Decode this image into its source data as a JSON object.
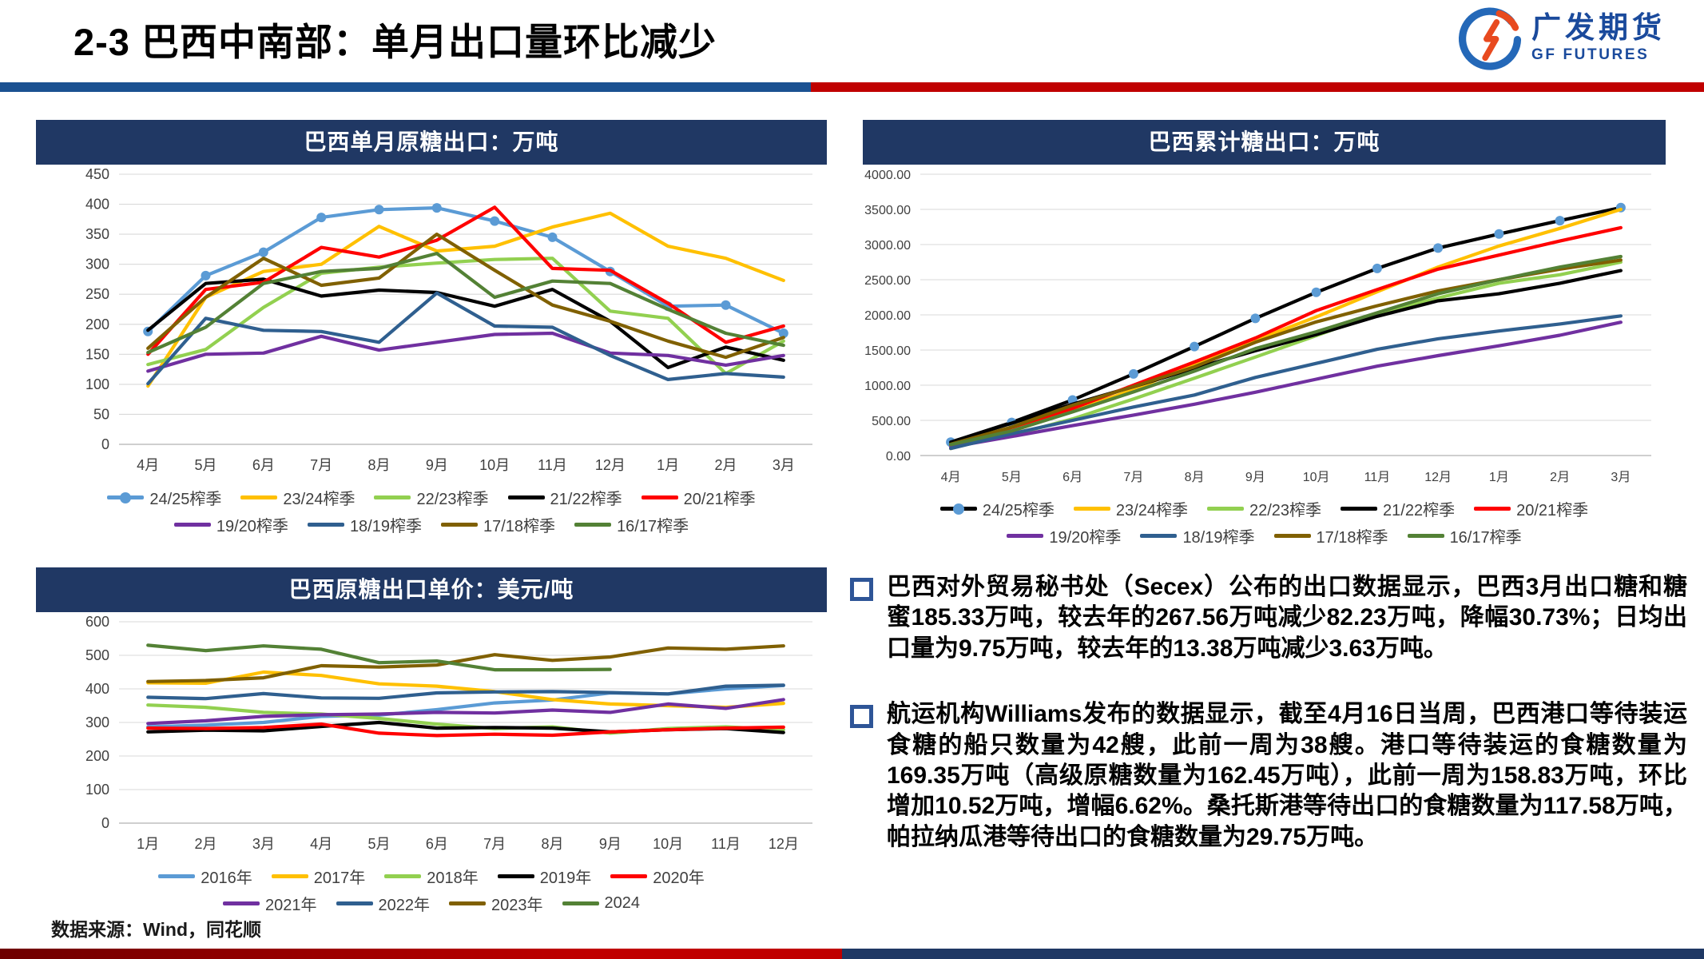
{
  "slide": {
    "title": "2-3 巴西中南部：单月出口量环比减少",
    "logo_cn": "广发期货",
    "logo_en": "GF FUTURES",
    "source": "数据来源：Wind，同花顺"
  },
  "colors": {
    "accent_red": "#C00000",
    "accent_blue": "#1B5191",
    "panel_header_navy": "#203864",
    "bottom_navy": "#1F3864",
    "logo_blue": "#1A4A9C",
    "bullet_square_blue": "#2E5597"
  },
  "bullets": [
    {
      "text": "巴西对外贸易秘书处（Secex）公布的出口数据显示，巴西3月出口糖和糖蜜185.33万吨，较去年的267.56万吨减少82.23万吨，降幅30.73%；日均出口量为9.75万吨，较去年的13.38万吨减少3.63万吨。"
    },
    {
      "text": "航运机构Williams发布的数据显示，截至4月16日当周，巴西港口等待装运食糖的船只数量为42艘，此前一周为38艘。港口等待装运的食糖数量为169.35万吨（高级原糖数量为162.45万吨），此前一周为158.83万吨，环比增加10.52万吨，增幅6.62%。桑托斯港等待出口的食糖数量为117.58万吨，帕拉纳瓜港等待出口的食糖数量为29.75万吨。"
    }
  ],
  "chart_data": [
    {
      "id": "brazil-monthly-raw-sugar-exports",
      "type": "line",
      "title": "巴西单月原糖出口：万吨",
      "categories": [
        "4月",
        "5月",
        "6月",
        "7月",
        "8月",
        "9月",
        "10月",
        "11月",
        "12月",
        "1月",
        "2月",
        "3月"
      ],
      "ylim": [
        0,
        450
      ],
      "ytick": 50,
      "y_format": "int",
      "grid": true,
      "legend_position": "bottom",
      "legend_rows": [
        5,
        4
      ],
      "series": [
        {
          "name": "24/25榨季",
          "color": "#5B9BD5",
          "marker": true,
          "values": [
            188,
            281,
            320,
            378,
            391,
            394,
            372,
            345,
            288,
            230,
            232,
            185
          ]
        },
        {
          "name": "23/24榨季",
          "color": "#FFC000",
          "values": [
            97,
            245,
            288,
            300,
            363,
            322,
            330,
            362,
            385,
            330,
            310,
            273
          ]
        },
        {
          "name": "22/23榨季",
          "color": "#92D050",
          "values": [
            133,
            158,
            228,
            285,
            295,
            302,
            308,
            310,
            222,
            210,
            118,
            172
          ]
        },
        {
          "name": "21/22榨季",
          "color": "#000000",
          "values": [
            190,
            268,
            275,
            247,
            257,
            253,
            230,
            258,
            205,
            128,
            162,
            140
          ]
        },
        {
          "name": "20/21榨季",
          "color": "#FF0000",
          "values": [
            150,
            258,
            270,
            328,
            312,
            340,
            395,
            293,
            290,
            235,
            170,
            197
          ]
        },
        {
          "name": "19/20榨季",
          "color": "#7030A0",
          "values": [
            122,
            150,
            152,
            180,
            157,
            170,
            183,
            185,
            152,
            148,
            132,
            148
          ]
        },
        {
          "name": "18/19榨季",
          "color": "#2F5F8F",
          "values": [
            101,
            210,
            190,
            188,
            170,
            252,
            197,
            195,
            148,
            108,
            118,
            112
          ]
        },
        {
          "name": "17/18榨季",
          "color": "#806000",
          "values": [
            160,
            245,
            310,
            265,
            277,
            350,
            290,
            232,
            205,
            172,
            145,
            178
          ]
        },
        {
          "name": "16/17榨季",
          "color": "#538135",
          "values": [
            153,
            195,
            268,
            288,
            293,
            318,
            245,
            272,
            268,
            225,
            185,
            165
          ]
        }
      ]
    },
    {
      "id": "brazil-cumulative-sugar-exports",
      "type": "line",
      "title": "巴西累计糖出口：万吨",
      "categories": [
        "4月",
        "5月",
        "6月",
        "7月",
        "8月",
        "9月",
        "10月",
        "11月",
        "12月",
        "1月",
        "2月",
        "3月"
      ],
      "ylim": [
        0,
        4000
      ],
      "ytick": 500,
      "y_format": "2dp",
      "grid": true,
      "legend_position": "bottom",
      "legend_rows": [
        5,
        4
      ],
      "series": [
        {
          "name": "24/25榨季",
          "color": "#000000",
          "marker": true,
          "marker_color": "#5B9BD5",
          "values": [
            190,
            470,
            790,
            1160,
            1550,
            1950,
            2320,
            2660,
            2950,
            3150,
            3340,
            3525
          ]
        },
        {
          "name": "23/24榨季",
          "color": "#FFC000",
          "values": [
            100,
            345,
            635,
            935,
            1300,
            1640,
            1970,
            2330,
            2680,
            2980,
            3230,
            3500
          ]
        },
        {
          "name": "22/23榨季",
          "color": "#92D050",
          "values": [
            135,
            290,
            520,
            805,
            1100,
            1400,
            1705,
            2015,
            2240,
            2450,
            2570,
            2750
          ]
        },
        {
          "name": "21/22榨季",
          "color": "#000000",
          "values": [
            190,
            460,
            730,
            980,
            1240,
            1490,
            1720,
            1980,
            2200,
            2300,
            2450,
            2630
          ]
        },
        {
          "name": "20/21榨季",
          "color": "#FF0000",
          "values": [
            150,
            400,
            670,
            1000,
            1330,
            1670,
            2060,
            2360,
            2650,
            2850,
            3050,
            3240
          ]
        },
        {
          "name": "19/20榨季",
          "color": "#7030A0",
          "values": [
            120,
            270,
            425,
            575,
            730,
            900,
            1085,
            1270,
            1420,
            1560,
            1710,
            1895
          ]
        },
        {
          "name": "18/19榨季",
          "color": "#2F5F8F",
          "values": [
            100,
            310,
            500,
            690,
            860,
            1110,
            1310,
            1510,
            1660,
            1770,
            1870,
            1985
          ]
        },
        {
          "name": "17/18榨季",
          "color": "#806000",
          "values": [
            160,
            405,
            715,
            980,
            1260,
            1610,
            1900,
            2130,
            2340,
            2500,
            2650,
            2780
          ]
        },
        {
          "name": "16/17榨季",
          "color": "#538135",
          "values": [
            155,
            350,
            620,
            905,
            1200,
            1520,
            1760,
            2030,
            2300,
            2500,
            2680,
            2830
          ]
        }
      ]
    },
    {
      "id": "brazil-raw-sugar-export-unit-price",
      "type": "line",
      "title": "巴西原糖出口单价：美元/吨",
      "categories": [
        "1月",
        "2月",
        "3月",
        "4月",
        "5月",
        "6月",
        "7月",
        "8月",
        "9月",
        "10月",
        "11月",
        "12月"
      ],
      "ylim": [
        0,
        600
      ],
      "ytick": 100,
      "y_format": "int",
      "grid": true,
      "legend_position": "bottom",
      "legend_rows": [
        5,
        4
      ],
      "series": [
        {
          "name": "2016年",
          "color": "#5B9BD5",
          "values": [
            287,
            292,
            300,
            318,
            322,
            338,
            358,
            367,
            388,
            385,
            400,
            410
          ]
        },
        {
          "name": "2017年",
          "color": "#FFC000",
          "values": [
            418,
            417,
            450,
            440,
            415,
            408,
            392,
            368,
            355,
            350,
            345,
            357
          ]
        },
        {
          "name": "2018年",
          "color": "#92D050",
          "values": [
            352,
            345,
            330,
            325,
            312,
            295,
            282,
            287,
            268,
            282,
            287,
            278
          ]
        },
        {
          "name": "2019年",
          "color": "#000000",
          "values": [
            272,
            277,
            275,
            288,
            300,
            283,
            285,
            283,
            272,
            278,
            282,
            270
          ]
        },
        {
          "name": "2020年",
          "color": "#FF0000",
          "values": [
            283,
            282,
            285,
            295,
            268,
            261,
            265,
            262,
            272,
            278,
            283,
            286
          ]
        },
        {
          "name": "2021年",
          "color": "#7030A0",
          "values": [
            297,
            305,
            318,
            323,
            325,
            330,
            328,
            337,
            330,
            355,
            342,
            368
          ]
        },
        {
          "name": "2022年",
          "color": "#2F5F8F",
          "values": [
            375,
            371,
            386,
            373,
            372,
            388,
            391,
            392,
            389,
            385,
            408,
            411
          ]
        },
        {
          "name": "2023年",
          "color": "#806000",
          "values": [
            422,
            425,
            433,
            469,
            465,
            471,
            502,
            485,
            495,
            522,
            518,
            528
          ]
        },
        {
          "name": "2024",
          "color": "#538135",
          "values": [
            530,
            514,
            528,
            518,
            478,
            483,
            457,
            457,
            458,
            null,
            null,
            null
          ]
        }
      ]
    }
  ]
}
